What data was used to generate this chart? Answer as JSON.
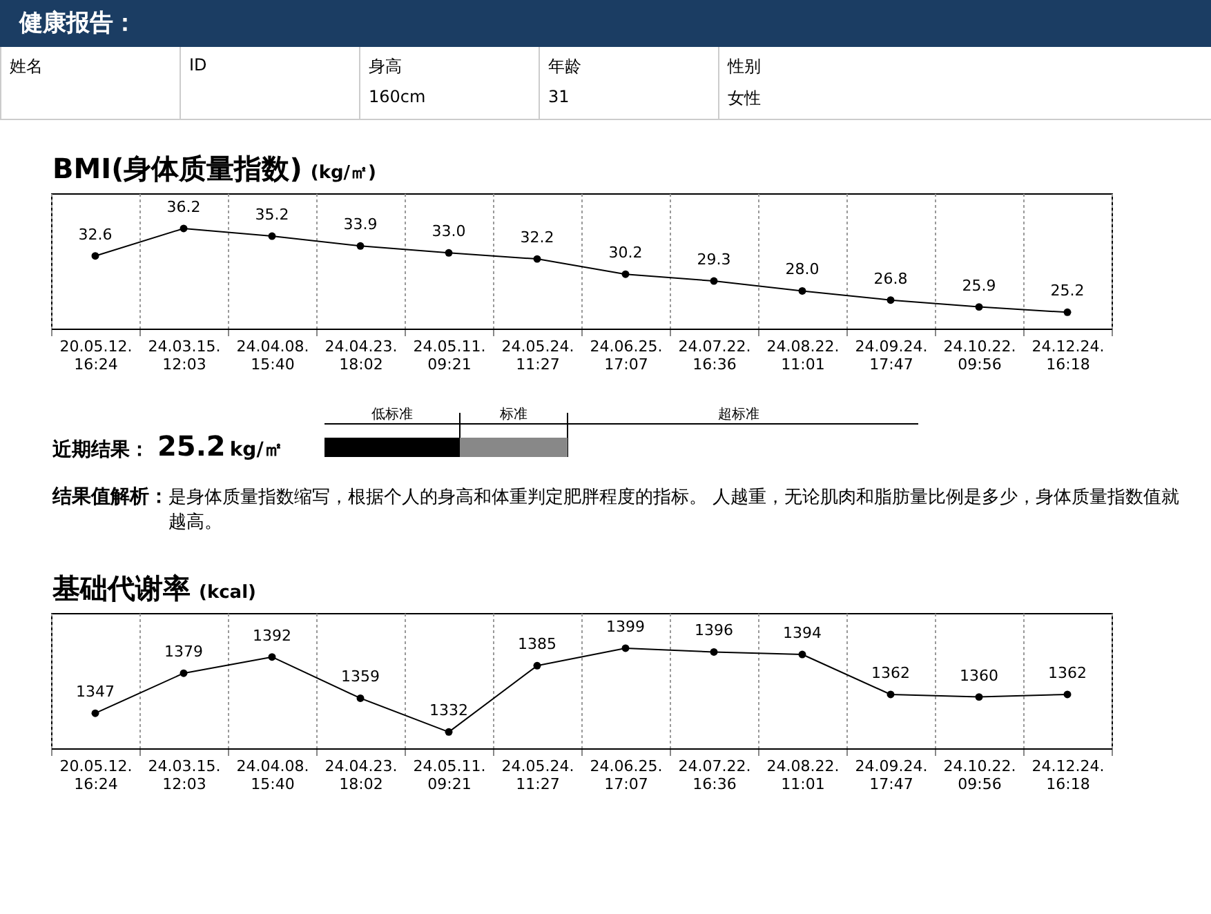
{
  "chart_data": [
    {
      "type": "line",
      "title": "BMI(身体质量指数)",
      "subtitle": "(kg/㎡)",
      "categories": [
        "20.05.12. 16:24",
        "24.03.15. 12:03",
        "24.04.08. 15:40",
        "24.04.23. 18:02",
        "24.05.11. 09:21",
        "24.05.24. 11:27",
        "24.06.25. 17:07",
        "24.07.22. 16:36",
        "24.08.22. 11:01",
        "24.09.24. 17:47",
        "24.10.22. 09:56",
        "24.12.24. 16:18"
      ],
      "series": [
        {
          "color": "#000000",
          "values": [
            32.6,
            36.2,
            35.2,
            33.9,
            33.0,
            32.2,
            30.2,
            29.3,
            28.0,
            26.8,
            25.9,
            25.2
          ],
          "value_labels": [
            "32.6",
            "36.2",
            "35.2",
            "33.9",
            "33.0",
            "32.2",
            "30.2",
            "29.3",
            "28.0",
            "26.8",
            "25.9",
            "25.2"
          ]
        }
      ],
      "grid": "x",
      "marker": "circle",
      "tick_labels": "x",
      "annotations": [
        "健康报告：",
        "姓名",
        "ID",
        "身高",
        "160cm",
        "年龄",
        "31",
        "性别",
        "女性",
        "近期结果：",
        "25.2",
        "kg/㎡",
        "低标准",
        "标准",
        "超标准",
        "结果值解析：",
        "是身体质量指数缩写，根据个人的身高和体重判定肥胖程度的指标。 人越重，无论肌肉和脂肪量比例是多少，身体质量指数值就越高。"
      ]
    },
    {
      "type": "line",
      "title": "基础代谢率",
      "subtitle": "(kcal)",
      "categories": [
        "20.05.12. 16:24",
        "24.03.15. 12:03",
        "24.04.08. 15:40",
        "24.04.23. 18:02",
        "24.05.11. 09:21",
        "24.05.24. 11:27",
        "24.06.25. 17:07",
        "24.07.22. 16:36",
        "24.08.22. 11:01",
        "24.09.24. 17:47",
        "24.10.22. 09:56",
        "24.12.24. 16:18"
      ],
      "series": [
        {
          "color": "#000000",
          "values": [
            1347,
            1379,
            1392,
            1359,
            1332,
            1385,
            1399,
            1396,
            1394,
            1362,
            1360,
            1362
          ]
        }
      ],
      "data_labels": true,
      "grid": "x",
      "marker": "circle",
      "tick_labels": "x"
    }
  ]
}
